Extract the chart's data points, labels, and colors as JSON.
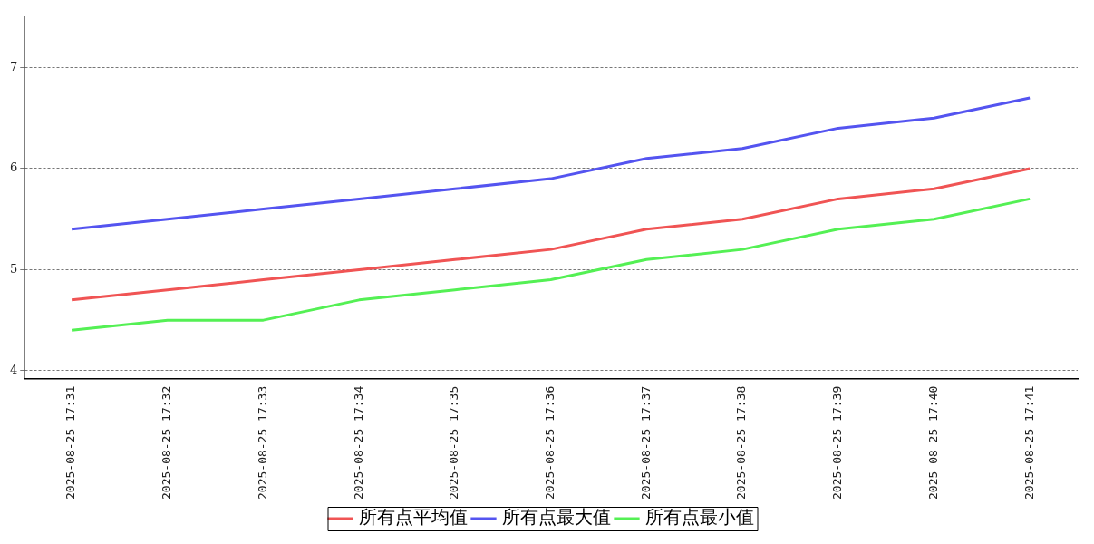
{
  "chart_data": {
    "type": "line",
    "categories": [
      "2025-08-25 17:31",
      "2025-08-25 17:32",
      "2025-08-25 17:33",
      "2025-08-25 17:34",
      "2025-08-25 17:35",
      "2025-08-25 17:36",
      "2025-08-25 17:37",
      "2025-08-25 17:38",
      "2025-08-25 17:39",
      "2025-08-25 17:40",
      "2025-08-25 17:41"
    ],
    "series": [
      {
        "name": "所有点平均值",
        "color": "#f05454",
        "values": [
          4.7,
          4.8,
          4.9,
          5.0,
          5.1,
          5.2,
          5.4,
          5.5,
          5.7,
          5.8,
          6.0
        ]
      },
      {
        "name": "所有点最大值",
        "color": "#5454f0",
        "values": [
          5.4,
          5.5,
          5.6,
          5.7,
          5.8,
          5.9,
          6.1,
          6.2,
          6.4,
          6.5,
          6.7
        ]
      },
      {
        "name": "所有点最小值",
        "color": "#54f054",
        "values": [
          4.4,
          4.5,
          4.5,
          4.7,
          4.8,
          4.9,
          5.1,
          5.2,
          5.4,
          5.5,
          5.7
        ]
      }
    ],
    "ylim": [
      3.92,
      7.5
    ],
    "yticks": [
      4,
      5,
      6,
      7
    ],
    "grid": "y",
    "legend": "bottom",
    "marker": "none",
    "line_style": "solid"
  }
}
